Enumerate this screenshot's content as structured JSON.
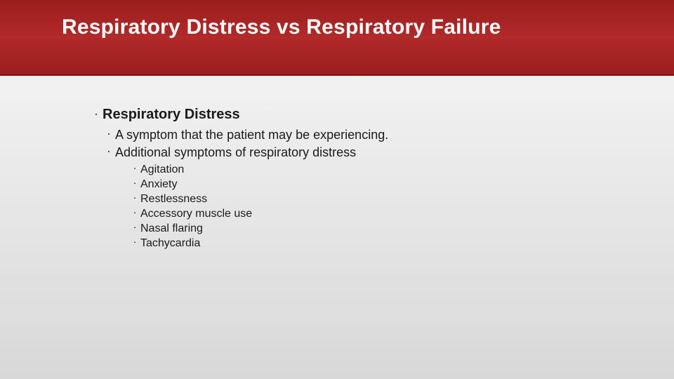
{
  "colors": {
    "header_gradient_top": "#9a1d1d",
    "header_gradient_mid": "#b22a2a",
    "header_gradient_bottom": "#9a1d1d",
    "header_border": "#7a1515",
    "body_gradient_top": "#f8f8f8",
    "body_gradient_bottom": "#d8d8d8",
    "title_color": "#ffffff",
    "text_color": "#1a1a1a"
  },
  "typography": {
    "title_fontsize": 30,
    "level0_fontsize": 20,
    "level1_fontsize": 18,
    "level2_fontsize": 16,
    "font_family": "Franklin Gothic Medium"
  },
  "bullet_glyph": "▪",
  "slide": {
    "title": "Respiratory Distress vs Respiratory Failure",
    "level0": {
      "heading": "Respiratory Distress",
      "level1": {
        "item0": "A symptom that the patient may be experiencing.",
        "item1": "Additional symptoms of respiratory distress",
        "level2": {
          "s0": "Agitation",
          "s1": "Anxiety",
          "s2": "Restlessness",
          "s3": "Accessory muscle use",
          "s4": "Nasal flaring",
          "s5": "Tachycardia"
        }
      }
    }
  }
}
